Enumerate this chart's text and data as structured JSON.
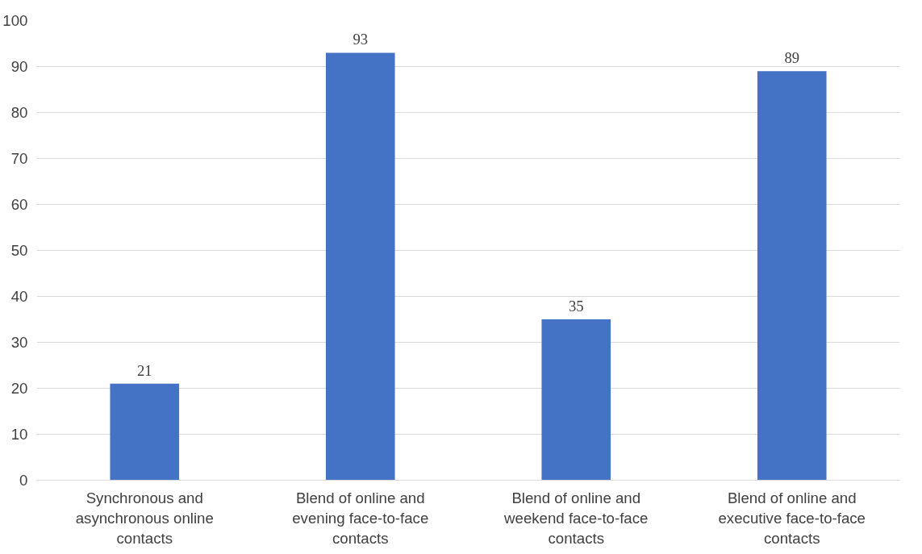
{
  "chart_data": {
    "type": "bar",
    "categories": [
      "Synchronous and asynchronous online contacts",
      "Blend of online and evening face-to-face contacts",
      "Blend of online and weekend face-to-face contacts",
      "Blend of online and executive face-to-face contacts"
    ],
    "values": [
      21,
      93,
      35,
      89
    ],
    "color": "#4472c4",
    "ylim": [
      0,
      100
    ],
    "yticks": [
      0,
      10,
      20,
      30,
      40,
      50,
      60,
      70,
      80,
      90,
      100
    ],
    "grid": "y",
    "data_labels": true
  }
}
